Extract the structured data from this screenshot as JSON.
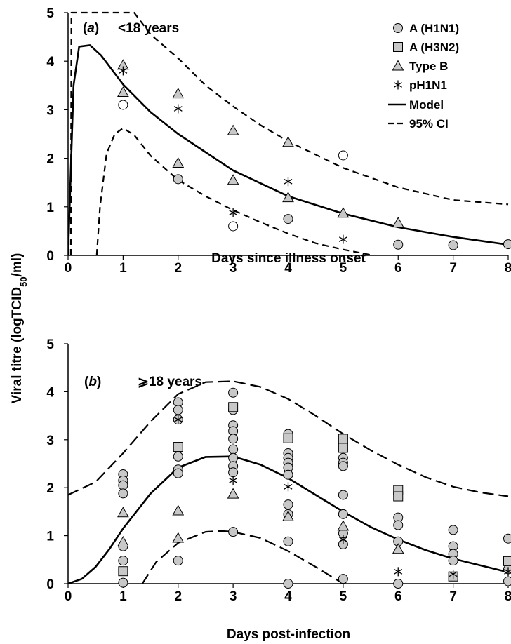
{
  "y_axis_label": "Viral titre (logTCID",
  "y_axis_label_sub": "50",
  "y_axis_label_tail": "/ml)",
  "colors": {
    "marker_fill": "#c8c8c8",
    "line": "#000000",
    "open_marker_fill": "#ffffff"
  },
  "chart_data": [
    {
      "type": "line",
      "panel_open": "(",
      "panel_letter": "a",
      "panel_close": ")",
      "panel_age": "<18 years",
      "xlabel": "Days since illness onset",
      "xlim": [
        0,
        8
      ],
      "ylim": [
        0,
        5
      ],
      "x_ticks": [
        "0",
        "1",
        "2",
        "3",
        "4",
        "5",
        "6",
        "7",
        "8"
      ],
      "y_ticks": [
        "0",
        "1",
        "2",
        "3",
        "4",
        "5"
      ],
      "legend": {
        "position": "top-right",
        "entries": [
          {
            "label": "A (H1N1)",
            "marker": "circle"
          },
          {
            "label": "A (H3N2)",
            "marker": "square"
          },
          {
            "label": "Type B",
            "marker": "triangle"
          },
          {
            "label": "pH1N1",
            "marker": "star"
          },
          {
            "label": "Model",
            "marker": "solid-line"
          },
          {
            "label": "95% CI",
            "marker": "dashed-line"
          }
        ]
      },
      "series": [
        {
          "name": "A (H1N1)",
          "marker": "circle",
          "points": [
            [
              2,
              1.57
            ],
            [
              4,
              0.75
            ],
            [
              6,
              0.22
            ],
            [
              7,
              0.21
            ],
            [
              8,
              0.23
            ]
          ]
        },
        {
          "name": "A (H1N1) open",
          "marker": "open-circle",
          "points": [
            [
              1,
              3.1
            ],
            [
              3,
              0.6
            ],
            [
              5,
              2.06
            ]
          ]
        },
        {
          "name": "Type B",
          "marker": "triangle",
          "points": [
            [
              1,
              3.92
            ],
            [
              1,
              3.36
            ],
            [
              2,
              3.33
            ],
            [
              2,
              1.9
            ],
            [
              3,
              2.57
            ],
            [
              3,
              1.55
            ],
            [
              4,
              2.33
            ],
            [
              4,
              1.19
            ],
            [
              5,
              0.87
            ],
            [
              6,
              0.67
            ]
          ]
        },
        {
          "name": "pH1N1",
          "marker": "star",
          "points": [
            [
              1,
              3.8
            ],
            [
              2,
              3.02
            ],
            [
              3,
              0.88
            ],
            [
              4,
              1.52
            ],
            [
              5,
              0.33
            ]
          ]
        },
        {
          "name": "Model",
          "style": "solid",
          "points": [
            [
              0,
              0
            ],
            [
              0.1,
              3.5
            ],
            [
              0.2,
              4.3
            ],
            [
              0.4,
              4.33
            ],
            [
              0.6,
              4.12
            ],
            [
              1,
              3.52
            ],
            [
              1.5,
              2.95
            ],
            [
              2,
              2.5
            ],
            [
              3,
              1.75
            ],
            [
              4,
              1.22
            ],
            [
              5,
              0.86
            ],
            [
              6,
              0.58
            ],
            [
              7,
              0.38
            ],
            [
              8,
              0.22
            ]
          ]
        },
        {
          "name": "95% CI upper",
          "style": "dashed",
          "points": [
            [
              0.05,
              0
            ],
            [
              0.06,
              5
            ],
            [
              1.2,
              5
            ],
            [
              1.5,
              4.55
            ],
            [
              2,
              4.06
            ],
            [
              2.5,
              3.5
            ],
            [
              3,
              3.07
            ],
            [
              3.5,
              2.68
            ],
            [
              4,
              2.35
            ],
            [
              5,
              1.8
            ],
            [
              6,
              1.4
            ],
            [
              7,
              1.14
            ],
            [
              8,
              1.05
            ]
          ]
        },
        {
          "name": "95% CI lower",
          "style": "dashed",
          "points": [
            [
              0.52,
              0
            ],
            [
              0.58,
              1
            ],
            [
              0.7,
              2.1
            ],
            [
              0.85,
              2.5
            ],
            [
              1,
              2.62
            ],
            [
              1.2,
              2.48
            ],
            [
              1.5,
              2.05
            ],
            [
              2,
              1.55
            ],
            [
              2.5,
              1.22
            ],
            [
              3,
              0.93
            ],
            [
              3.5,
              0.68
            ],
            [
              4,
              0.45
            ],
            [
              4.5,
              0.25
            ],
            [
              5,
              0.12
            ],
            [
              5.5,
              0.01
            ],
            [
              6,
              -0.08
            ]
          ]
        }
      ]
    },
    {
      "type": "line",
      "panel_open": "(",
      "panel_letter": "b",
      "panel_close": ")",
      "panel_age": "⩾18 years",
      "xlabel": "Days post-infection",
      "xlim": [
        0,
        8
      ],
      "ylim": [
        0,
        5
      ],
      "x_ticks": [
        "0",
        "1",
        "2",
        "3",
        "4",
        "5",
        "6",
        "7",
        "8"
      ],
      "y_ticks": [
        "0",
        "1",
        "2",
        "3",
        "4",
        "5"
      ],
      "series": [
        {
          "name": "A (H1N1)",
          "marker": "circle",
          "points": [
            [
              1,
              2.28
            ],
            [
              1,
              2.15
            ],
            [
              1,
              2.05
            ],
            [
              1,
              1.88
            ],
            [
              1,
              0.78
            ],
            [
              1,
              0.48
            ],
            [
              1,
              0.02
            ],
            [
              2,
              3.78
            ],
            [
              2,
              3.62
            ],
            [
              2,
              3.42
            ],
            [
              2,
              2.65
            ],
            [
              2,
              2.38
            ],
            [
              2,
              2.3
            ],
            [
              2,
              0.48
            ],
            [
              3,
              3.98
            ],
            [
              3,
              3.62
            ],
            [
              3,
              3.3
            ],
            [
              3,
              3.18
            ],
            [
              3,
              3.02
            ],
            [
              3,
              2.8
            ],
            [
              3,
              2.62
            ],
            [
              3,
              2.45
            ],
            [
              3,
              2.32
            ],
            [
              3,
              1.08
            ],
            [
              4,
              3.12
            ],
            [
              4,
              2.72
            ],
            [
              4,
              2.62
            ],
            [
              4,
              2.52
            ],
            [
              4,
              2.42
            ],
            [
              4,
              2.27
            ],
            [
              4,
              1.65
            ],
            [
              4,
              1.45
            ],
            [
              4,
              0.88
            ],
            [
              4,
              0
            ],
            [
              5,
              2.62
            ],
            [
              5,
              2.52
            ],
            [
              5,
              2.45
            ],
            [
              5,
              1.85
            ],
            [
              5,
              1.45
            ],
            [
              5,
              1.05
            ],
            [
              5,
              0.82
            ],
            [
              5,
              0.1
            ],
            [
              6,
              1.38
            ],
            [
              6,
              1.22
            ],
            [
              6,
              0.88
            ],
            [
              6,
              0
            ],
            [
              7,
              1.12
            ],
            [
              7,
              0.78
            ],
            [
              7,
              0.62
            ],
            [
              7,
              0.48
            ],
            [
              8,
              0.94
            ],
            [
              8,
              0.3
            ],
            [
              8,
              0.05
            ]
          ]
        },
        {
          "name": "A (H3N2)",
          "marker": "square",
          "points": [
            [
              1,
              0.26
            ],
            [
              2,
              2.85
            ],
            [
              3,
              3.68
            ],
            [
              4,
              3.03
            ],
            [
              5,
              3.02
            ],
            [
              5,
              2.83
            ],
            [
              6,
              1.95
            ],
            [
              6,
              1.82
            ],
            [
              7,
              0.15
            ],
            [
              8,
              0.47
            ]
          ]
        },
        {
          "name": "Type B",
          "marker": "triangle",
          "points": [
            [
              1,
              1.48
            ],
            [
              1,
              0.87
            ],
            [
              2,
              1.52
            ],
            [
              2,
              0.95
            ],
            [
              3,
              1.87
            ],
            [
              4,
              1.4
            ],
            [
              5,
              1.2
            ],
            [
              6,
              0.72
            ]
          ]
        },
        {
          "name": "pH1N1",
          "marker": "star",
          "points": [
            [
              2,
              3.42
            ],
            [
              3,
              2.15
            ],
            [
              4,
              2.02
            ],
            [
              5,
              0.92
            ],
            [
              6,
              0.25
            ],
            [
              7,
              0.2
            ],
            [
              8,
              0.25
            ]
          ]
        },
        {
          "name": "Model",
          "style": "solid",
          "points": [
            [
              0,
              0
            ],
            [
              0.25,
              0.1
            ],
            [
              0.5,
              0.35
            ],
            [
              0.75,
              0.72
            ],
            [
              1,
              1.15
            ],
            [
              1.5,
              1.88
            ],
            [
              2,
              2.42
            ],
            [
              2.5,
              2.64
            ],
            [
              3,
              2.65
            ],
            [
              3.5,
              2.48
            ],
            [
              4,
              2.2
            ],
            [
              4.5,
              1.85
            ],
            [
              5,
              1.5
            ],
            [
              5.5,
              1.18
            ],
            [
              6,
              0.92
            ],
            [
              6.5,
              0.7
            ],
            [
              7,
              0.52
            ],
            [
              7.5,
              0.38
            ],
            [
              8,
              0.24
            ]
          ]
        },
        {
          "name": "95% CI upper",
          "style": "dashed",
          "points": [
            [
              0,
              1.85
            ],
            [
              0.5,
              2.12
            ],
            [
              1,
              2.72
            ],
            [
              1.5,
              3.38
            ],
            [
              2,
              3.95
            ],
            [
              2.5,
              4.2
            ],
            [
              3,
              4.22
            ],
            [
              3.5,
              4.1
            ],
            [
              4,
              3.85
            ],
            [
              4.5,
              3.5
            ],
            [
              5,
              3.12
            ],
            [
              5.5,
              2.78
            ],
            [
              6,
              2.48
            ],
            [
              6.5,
              2.22
            ],
            [
              7,
              2.02
            ],
            [
              7.5,
              1.9
            ],
            [
              8,
              1.82
            ]
          ]
        },
        {
          "name": "95% CI lower",
          "style": "dashed",
          "points": [
            [
              1.35,
              0
            ],
            [
              1.6,
              0.45
            ],
            [
              2,
              0.85
            ],
            [
              2.5,
              1.08
            ],
            [
              2.8,
              1.1
            ],
            [
              3,
              1.08
            ],
            [
              3.5,
              0.95
            ],
            [
              4,
              0.68
            ],
            [
              4.5,
              0.35
            ],
            [
              5,
              0
            ]
          ]
        }
      ]
    }
  ]
}
